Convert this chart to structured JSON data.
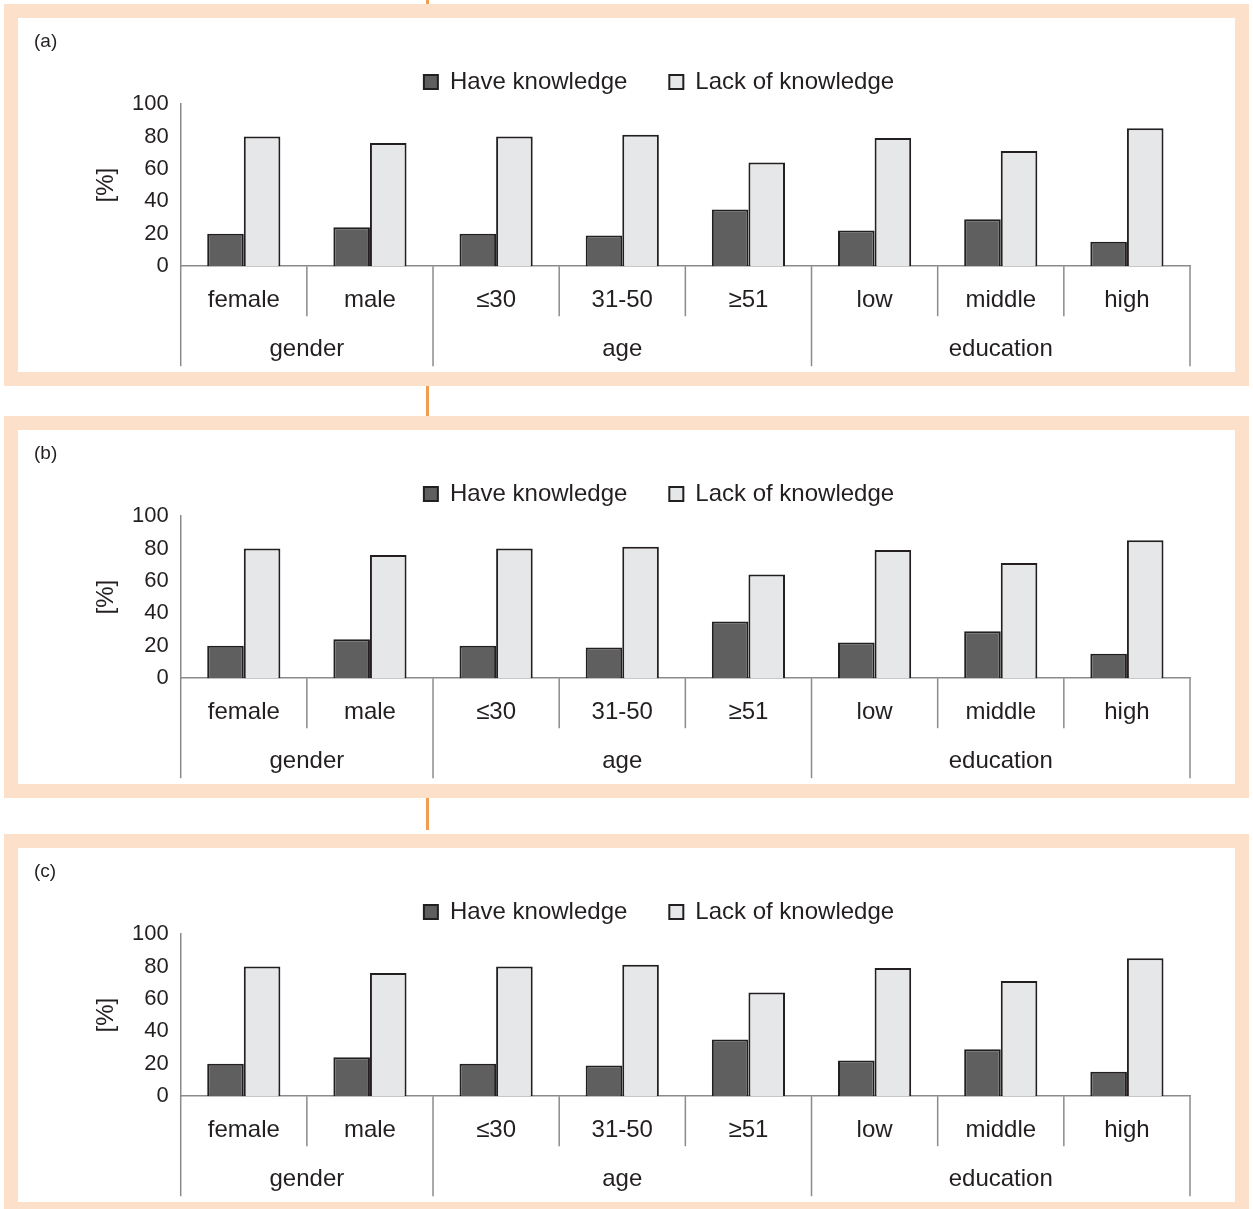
{
  "chart_data": [
    {
      "type": "bar",
      "title": "(a)",
      "ylabel": "[%]",
      "categories": [
        "female",
        "male",
        "≤30",
        "31-50",
        "≥51",
        "low",
        "middle",
        "high"
      ],
      "annotations": [
        "gender",
        "age",
        "education"
      ],
      "series": [
        {
          "name": "Have knowledge",
          "color": "#5f5f5f",
          "values": [
            20,
            24,
            20,
            19,
            35,
            22,
            29,
            15
          ]
        },
        {
          "name": "Lack of knowledge",
          "color": "#e6e7e8",
          "values": [
            80,
            76,
            80,
            81,
            64,
            79,
            71,
            85
          ]
        }
      ],
      "ylim": [
        0,
        100
      ],
      "yticks": [
        0,
        20,
        40,
        60,
        80,
        100
      ],
      "grid": false,
      "legend": "top"
    },
    {
      "type": "bar",
      "title": "(b)",
      "ylabel": "[%]",
      "categories": [
        "female",
        "male",
        "≤30",
        "31-50",
        "≥51",
        "low",
        "middle",
        "high"
      ],
      "annotations": [
        "gender",
        "age",
        "education"
      ],
      "series": [
        {
          "name": "Have knowledge",
          "color": "#5f5f5f",
          "values": [
            20,
            24,
            20,
            19,
            35,
            22,
            29,
            15
          ]
        },
        {
          "name": "Lack of knowledge",
          "color": "#e6e7e8",
          "values": [
            80,
            76,
            80,
            81,
            64,
            79,
            71,
            85
          ]
        }
      ],
      "ylim": [
        0,
        100
      ],
      "yticks": [
        0,
        20,
        40,
        60,
        80,
        100
      ],
      "grid": false,
      "legend": "top"
    },
    {
      "type": "bar",
      "title": "(c)",
      "ylabel": "[%]",
      "categories": [
        "female",
        "male",
        "≤30",
        "31-50",
        "≥51",
        "low",
        "middle",
        "high"
      ],
      "annotations": [
        "gender",
        "age",
        "education"
      ],
      "series": [
        {
          "name": "Have knowledge",
          "color": "#5f5f5f",
          "values": [
            20,
            24,
            20,
            19,
            35,
            22,
            29,
            15
          ]
        },
        {
          "name": "Lack of knowledge",
          "color": "#e6e7e8",
          "values": [
            80,
            76,
            80,
            81,
            64,
            79,
            71,
            85
          ]
        }
      ],
      "ylim": [
        0,
        100
      ],
      "yticks": [
        0,
        20,
        40,
        60,
        80,
        100
      ],
      "grid": false,
      "legend": "top"
    }
  ]
}
